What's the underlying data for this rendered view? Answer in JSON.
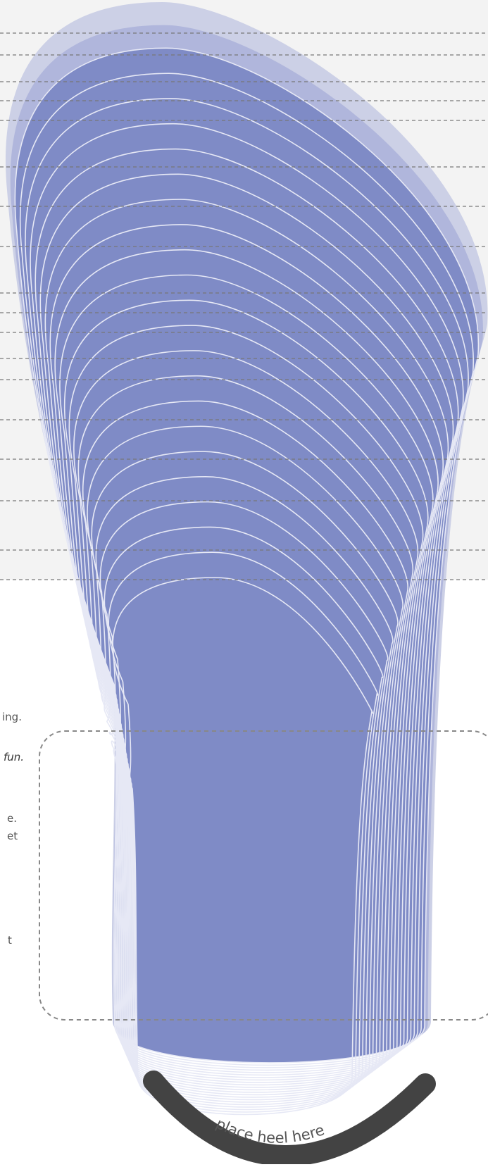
{
  "colors": {
    "page": "#ffffff",
    "band": "#f3f3f3",
    "outer_sole": "#ccd0e6",
    "mid_sole": "#aab1d9",
    "sole_fill": "#7f8bc6",
    "contour_stroke": "#e6e8f5",
    "guide_line": "#777777",
    "heel_cup": "#434343"
  },
  "icons": [
    "footprint-outline",
    "heel-cup"
  ],
  "text_fragments": [
    "ing.",
    "fun.",
    "e.",
    "et",
    "t"
  ],
  "heel_label": "place heel here",
  "size_guide_line_count": 19,
  "contour_count": 22
}
